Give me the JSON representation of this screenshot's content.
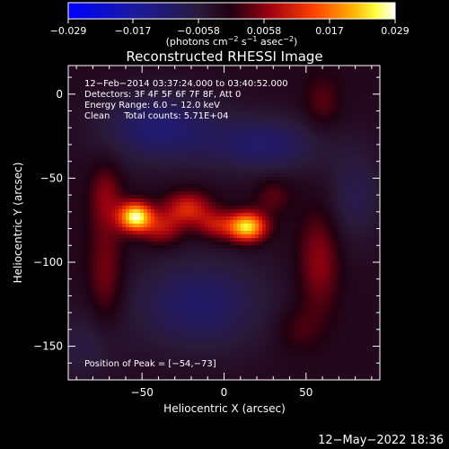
{
  "colorbar": {
    "ticks": [
      "−0.029",
      "−0.017",
      "−0.0058",
      "0.0058",
      "0.017",
      "0.029"
    ],
    "units": "(photons cm",
    "units_exp1": "−2",
    "units_mid": " s",
    "units_exp2": "−1",
    "units_mid2": " asec",
    "units_exp3": "−2",
    "units_end": ")"
  },
  "footer": {
    "timestamp": "12−May−2022 18:36"
  },
  "chart_data": {
    "type": "heatmap",
    "title": "Reconstructed RHESSI Image",
    "xlabel": "Heliocentric X (arcsec)",
    "ylabel": "Heliocentric Y (arcsec)",
    "xlim": [
      -95,
      95
    ],
    "ylim": [
      -170,
      17
    ],
    "x_ticks": [
      -50,
      0,
      50
    ],
    "y_ticks": [
      0,
      -50,
      -100,
      -150
    ],
    "x_tick_labels": [
      "−50",
      "0",
      "50"
    ],
    "y_tick_labels": [
      "0",
      "−50",
      "−100",
      "−150"
    ],
    "clim": [
      -0.029,
      0.029
    ],
    "colormap": "rhessi-blue-black-red-yellow-white",
    "info_lines": [
      "12−Feb−2014 03:37:24.000 to 03:40:52.000",
      "Detectors: 3F 4F 5F 6F 7F 8F, Att 0",
      "Energy Range: 6.0 − 12.0 keV",
      "Clean     Total counts: 5.71E+04"
    ],
    "peak_annotation": "Position of Peak = [−54,−73]",
    "sources": [
      {
        "x": -54,
        "y": -73,
        "amp": 0.029,
        "sx": 7,
        "sy": 6
      },
      {
        "x": 14,
        "y": -79,
        "amp": 0.027,
        "sx": 8,
        "sy": 6
      },
      {
        "x": -22,
        "y": -68,
        "amp": 0.013,
        "sx": 10,
        "sy": 7
      },
      {
        "x": -38,
        "y": -80,
        "amp": 0.01,
        "sx": 9,
        "sy": 7
      },
      {
        "x": -5,
        "y": -78,
        "amp": 0.01,
        "sx": 8,
        "sy": 6
      },
      {
        "x": -72,
        "y": -60,
        "amp": 0.007,
        "sx": 7,
        "sy": 14
      },
      {
        "x": -72,
        "y": -108,
        "amp": 0.007,
        "sx": 8,
        "sy": 24
      },
      {
        "x": 58,
        "y": -100,
        "amp": 0.008,
        "sx": 9,
        "sy": 22
      },
      {
        "x": 30,
        "y": -60,
        "amp": 0.005,
        "sx": 8,
        "sy": 8
      },
      {
        "x": 60,
        "y": -5,
        "amp": 0.005,
        "sx": 8,
        "sy": 12
      },
      {
        "x": 45,
        "y": -140,
        "amp": 0.004,
        "sx": 10,
        "sy": 10
      }
    ],
    "negatives": [
      {
        "x": -40,
        "y": -20,
        "amp": 0.01,
        "sx": 25,
        "sy": 15
      },
      {
        "x": 25,
        "y": -30,
        "amp": 0.009,
        "sx": 25,
        "sy": 12
      },
      {
        "x": -15,
        "y": -125,
        "amp": 0.009,
        "sx": 30,
        "sy": 20
      },
      {
        "x": 80,
        "y": -60,
        "amp": 0.006,
        "sx": 12,
        "sy": 20
      },
      {
        "x": -85,
        "y": -150,
        "amp": 0.005,
        "sx": 15,
        "sy": 15
      }
    ]
  }
}
